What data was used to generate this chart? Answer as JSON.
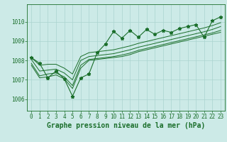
{
  "title": "Graphe pression niveau de la mer (hPa)",
  "yticks": [
    1006,
    1007,
    1008,
    1009,
    1010
  ],
  "ylim": [
    1005.4,
    1010.9
  ],
  "xlim": [
    -0.5,
    23.5
  ],
  "xticks": [
    0,
    1,
    2,
    3,
    4,
    5,
    6,
    7,
    8,
    9,
    10,
    11,
    12,
    13,
    14,
    15,
    16,
    17,
    18,
    19,
    20,
    21,
    22,
    23
  ],
  "bg_color": "#cceae7",
  "grid_color": "#aad4d0",
  "line_color": "#1a6e2a",
  "main_y": [
    1008.15,
    1007.85,
    1007.1,
    1007.45,
    1007.05,
    1006.15,
    1007.1,
    1007.3,
    1008.4,
    1008.85,
    1009.5,
    1009.15,
    1009.55,
    1009.2,
    1009.6,
    1009.35,
    1009.55,
    1009.45,
    1009.65,
    1009.75,
    1009.85,
    1009.2,
    1010.05,
    1010.25
  ],
  "line1_y": [
    1007.75,
    1007.1,
    1007.15,
    1007.25,
    1007.05,
    1006.55,
    1007.6,
    1008.0,
    1008.05,
    1008.1,
    1008.15,
    1008.2,
    1008.3,
    1008.45,
    1008.55,
    1008.65,
    1008.75,
    1008.85,
    1008.95,
    1009.05,
    1009.15,
    1009.25,
    1009.35,
    1009.45
  ],
  "line2_y": [
    1007.85,
    1007.2,
    1007.3,
    1007.35,
    1007.15,
    1006.7,
    1007.75,
    1008.05,
    1008.1,
    1008.15,
    1008.2,
    1008.28,
    1008.38,
    1008.52,
    1008.62,
    1008.72,
    1008.82,
    1008.92,
    1009.02,
    1009.12,
    1009.22,
    1009.32,
    1009.42,
    1009.55
  ],
  "line3_y": [
    1008.05,
    1007.45,
    1007.5,
    1007.55,
    1007.35,
    1007.0,
    1008.0,
    1008.2,
    1008.25,
    1008.3,
    1008.35,
    1008.45,
    1008.55,
    1008.68,
    1008.78,
    1008.88,
    1008.98,
    1009.08,
    1009.18,
    1009.28,
    1009.38,
    1009.48,
    1009.6,
    1009.75
  ],
  "line4_y": [
    1008.15,
    1007.75,
    1007.8,
    1007.8,
    1007.6,
    1007.3,
    1008.2,
    1008.4,
    1008.45,
    1008.5,
    1008.55,
    1008.65,
    1008.75,
    1008.88,
    1008.98,
    1009.08,
    1009.18,
    1009.28,
    1009.38,
    1009.48,
    1009.58,
    1009.68,
    1009.8,
    1009.95
  ]
}
